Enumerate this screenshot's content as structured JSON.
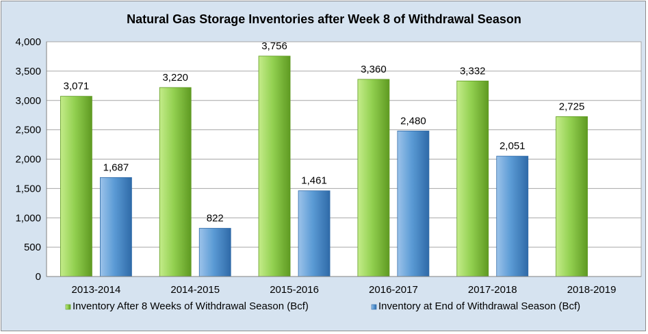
{
  "chart_data": {
    "type": "bar",
    "title": "Natural Gas Storage Inventories after Week 8 of Withdrawal Season",
    "xlabel": "",
    "ylabel": "",
    "categories": [
      "2013-2014",
      "2014-2015",
      "2015-2016",
      "2016-2017",
      "2017-2018",
      "2018-2019"
    ],
    "series": [
      {
        "name": "Inventory After 8 Weeks of Withdrawal Season (Bcf)",
        "values": [
          3071,
          3220,
          3756,
          3360,
          3332,
          2725
        ],
        "labels": [
          "3,071",
          "3,220",
          "3,756",
          "3,360",
          "3,332",
          "2,725"
        ],
        "color": "#92d050",
        "color_light": "#c4ec8a",
        "color_dark": "#5f9a22"
      },
      {
        "name": "Inventory at End of Withdrawal Season (Bcf)",
        "values": [
          1687,
          822,
          1461,
          2480,
          2051,
          null
        ],
        "labels": [
          "1,687",
          "822",
          "1,461",
          "2,480",
          "2,051",
          ""
        ],
        "color": "#5b9bd5",
        "color_light": "#9cc3ea",
        "color_dark": "#2f6aa8"
      }
    ],
    "ylim": [
      0,
      4000
    ],
    "yticks": [
      0,
      500,
      1000,
      1500,
      2000,
      2500,
      3000,
      3500,
      4000
    ],
    "ytick_labels": [
      "0",
      "500",
      "1,000",
      "1,500",
      "2,000",
      "2,500",
      "3,000",
      "3,500",
      "4,000"
    ],
    "grid": true,
    "legend_position": "bottom",
    "plot_background": "#ffffff",
    "chart_background": "#d6e3f0"
  }
}
